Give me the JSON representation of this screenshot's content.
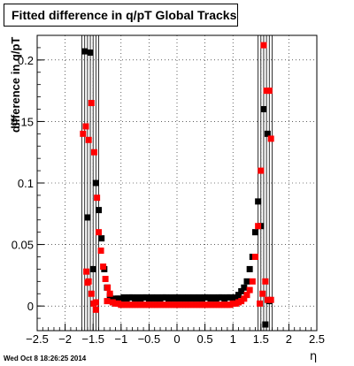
{
  "title": "Fitted difference in q/pT  Global Tracks",
  "timestamp": "Wed Oct  8 18:26:25 2014",
  "chart_data": {
    "type": "scatter",
    "title": "Fitted difference in q/pT  Global Tracks",
    "xlabel": "η",
    "ylabel": "difference in q/pT",
    "xlim": [
      -2.5,
      2.5
    ],
    "ylim": [
      -0.02,
      0.22
    ],
    "xticks": [
      -2.5,
      -2,
      -1.5,
      -1,
      -0.5,
      0,
      0.5,
      1,
      1.5,
      2,
      2.5
    ],
    "yticks": [
      0,
      0.05,
      0.1,
      0.15,
      0.2
    ],
    "xtick_labels": [
      "−2.5",
      "−2",
      "−1.5",
      "−1",
      "−0.5",
      "0",
      "0.5",
      "1",
      "1.5",
      "2",
      "2.5"
    ],
    "ytick_labels": [
      "0",
      "0.05",
      "0.1",
      "0.15",
      "0.2"
    ],
    "grid": true,
    "series": [
      {
        "color": "#000000",
        "marker": "square",
        "values": [
          [
            -1.65,
            0.207
          ],
          [
            -1.55,
            0.206
          ],
          [
            -1.6,
            0.072
          ],
          [
            -1.5,
            0.03
          ],
          [
            -1.45,
            0.1
          ],
          [
            -1.4,
            0.078
          ],
          [
            -1.35,
            0.055
          ],
          [
            -1.3,
            0.03
          ],
          [
            -1.25,
            0.015
          ],
          [
            -1.2,
            0.008
          ],
          [
            -1.15,
            0.005
          ],
          [
            -1.1,
            0.006
          ],
          [
            -1.05,
            0.006
          ],
          [
            -1.0,
            0.006
          ],
          [
            -0.95,
            0.007
          ],
          [
            -0.9,
            0.006
          ],
          [
            -0.85,
            0.007
          ],
          [
            -0.8,
            0.007
          ],
          [
            -0.75,
            0.006
          ],
          [
            -0.7,
            0.007
          ],
          [
            -0.65,
            0.006
          ],
          [
            -0.6,
            0.007
          ],
          [
            -0.55,
            0.007
          ],
          [
            -0.5,
            0.006
          ],
          [
            -0.45,
            0.007
          ],
          [
            -0.4,
            0.006
          ],
          [
            -0.35,
            0.007
          ],
          [
            -0.3,
            0.006
          ],
          [
            -0.25,
            0.007
          ],
          [
            -0.2,
            0.007
          ],
          [
            -0.15,
            0.006
          ],
          [
            -0.1,
            0.007
          ],
          [
            -0.05,
            0.006
          ],
          [
            0.0,
            0.007
          ],
          [
            0.05,
            0.006
          ],
          [
            0.1,
            0.007
          ],
          [
            0.15,
            0.006
          ],
          [
            0.2,
            0.007
          ],
          [
            0.25,
            0.006
          ],
          [
            0.3,
            0.007
          ],
          [
            0.35,
            0.006
          ],
          [
            0.4,
            0.007
          ],
          [
            0.45,
            0.006
          ],
          [
            0.5,
            0.007
          ],
          [
            0.55,
            0.007
          ],
          [
            0.6,
            0.006
          ],
          [
            0.65,
            0.007
          ],
          [
            0.7,
            0.006
          ],
          [
            0.75,
            0.007
          ],
          [
            0.8,
            0.007
          ],
          [
            0.85,
            0.006
          ],
          [
            0.9,
            0.007
          ],
          [
            0.95,
            0.007
          ],
          [
            1.0,
            0.006
          ],
          [
            1.05,
            0.007
          ],
          [
            1.1,
            0.009
          ],
          [
            1.15,
            0.012
          ],
          [
            1.2,
            0.015
          ],
          [
            1.25,
            0.02
          ],
          [
            1.3,
            0.03
          ],
          [
            1.35,
            0.04
          ],
          [
            1.4,
            0.06
          ],
          [
            1.45,
            0.085
          ],
          [
            1.5,
            0.065
          ],
          [
            1.55,
            0.16
          ],
          [
            1.62,
            0.14
          ],
          [
            1.65,
            0.004
          ],
          [
            1.58,
            -0.015
          ]
        ]
      },
      {
        "color": "#ff0000",
        "marker": "square",
        "values": [
          [
            -1.68,
            0.14
          ],
          [
            -1.63,
            0.146
          ],
          [
            -1.58,
            0.135
          ],
          [
            -1.53,
            0.165
          ],
          [
            -1.48,
            0.125
          ],
          [
            -1.43,
            0.088
          ],
          [
            -1.4,
            0.06
          ],
          [
            -1.36,
            0.045
          ],
          [
            -1.32,
            0.032
          ],
          [
            -1.28,
            0.022
          ],
          [
            -1.24,
            0.015
          ],
          [
            -1.2,
            0.01
          ],
          [
            -1.62,
            0.028
          ],
          [
            -1.58,
            0.02
          ],
          [
            -1.53,
            0.01
          ],
          [
            -1.49,
            0.002
          ],
          [
            -1.45,
            -0.003
          ],
          [
            -1.6,
            0.019
          ],
          [
            -1.25,
            0.004
          ],
          [
            -1.15,
            0.003
          ],
          [
            -1.1,
            0.002
          ],
          [
            -1.05,
            0.002
          ],
          [
            -1.0,
            0.001
          ],
          [
            -0.95,
            0.001
          ],
          [
            -0.9,
            0.001
          ],
          [
            -0.85,
            0.001
          ],
          [
            -0.8,
            0.001
          ],
          [
            -0.75,
            0.001
          ],
          [
            -0.7,
            0.001
          ],
          [
            -0.65,
            0.001
          ],
          [
            -0.6,
            0.001
          ],
          [
            -0.55,
            0.001
          ],
          [
            -0.5,
            0.001
          ],
          [
            -0.45,
            0.001
          ],
          [
            -0.4,
            0.001
          ],
          [
            -0.35,
            0.001
          ],
          [
            -0.3,
            0.001
          ],
          [
            -0.25,
            0.001
          ],
          [
            -0.2,
            0.001
          ],
          [
            -0.15,
            0.001
          ],
          [
            -0.1,
            0.001
          ],
          [
            -0.05,
            0.001
          ],
          [
            0.0,
            0.001
          ],
          [
            0.05,
            0.001
          ],
          [
            0.1,
            0.001
          ],
          [
            0.15,
            0.001
          ],
          [
            0.2,
            0.001
          ],
          [
            0.25,
            0.001
          ],
          [
            0.3,
            0.001
          ],
          [
            0.35,
            0.001
          ],
          [
            0.4,
            0.001
          ],
          [
            0.45,
            0.001
          ],
          [
            0.5,
            0.001
          ],
          [
            0.55,
            0.001
          ],
          [
            0.6,
            0.001
          ],
          [
            0.65,
            0.001
          ],
          [
            0.7,
            0.001
          ],
          [
            0.75,
            0.001
          ],
          [
            0.8,
            0.001
          ],
          [
            0.85,
            0.001
          ],
          [
            0.9,
            0.001
          ],
          [
            0.95,
            0.001
          ],
          [
            1.0,
            0.002
          ],
          [
            1.05,
            0.002
          ],
          [
            1.1,
            0.003
          ],
          [
            1.15,
            0.004
          ],
          [
            1.2,
            0.006
          ],
          [
            1.25,
            0.009
          ],
          [
            1.3,
            0.013
          ],
          [
            1.35,
            0.02
          ],
          [
            1.4,
            0.04
          ],
          [
            1.45,
            0.065
          ],
          [
            1.5,
            0.11
          ],
          [
            1.55,
            0.212
          ],
          [
            1.6,
            0.175
          ],
          [
            1.65,
            0.175
          ],
          [
            1.68,
            0.136
          ],
          [
            1.62,
            0.005
          ],
          [
            1.58,
            0.02
          ],
          [
            1.53,
            0.01
          ],
          [
            1.48,
            0.002
          ],
          [
            1.68,
            0.005
          ],
          [
            -1.45,
            0.003
          ]
        ]
      }
    ],
    "errorbars_x": [
      -1.7,
      -1.65,
      -1.6,
      -1.55,
      -1.5,
      -1.45,
      -1.4,
      1.45,
      1.5,
      1.55,
      1.6,
      1.65,
      1.7
    ]
  }
}
